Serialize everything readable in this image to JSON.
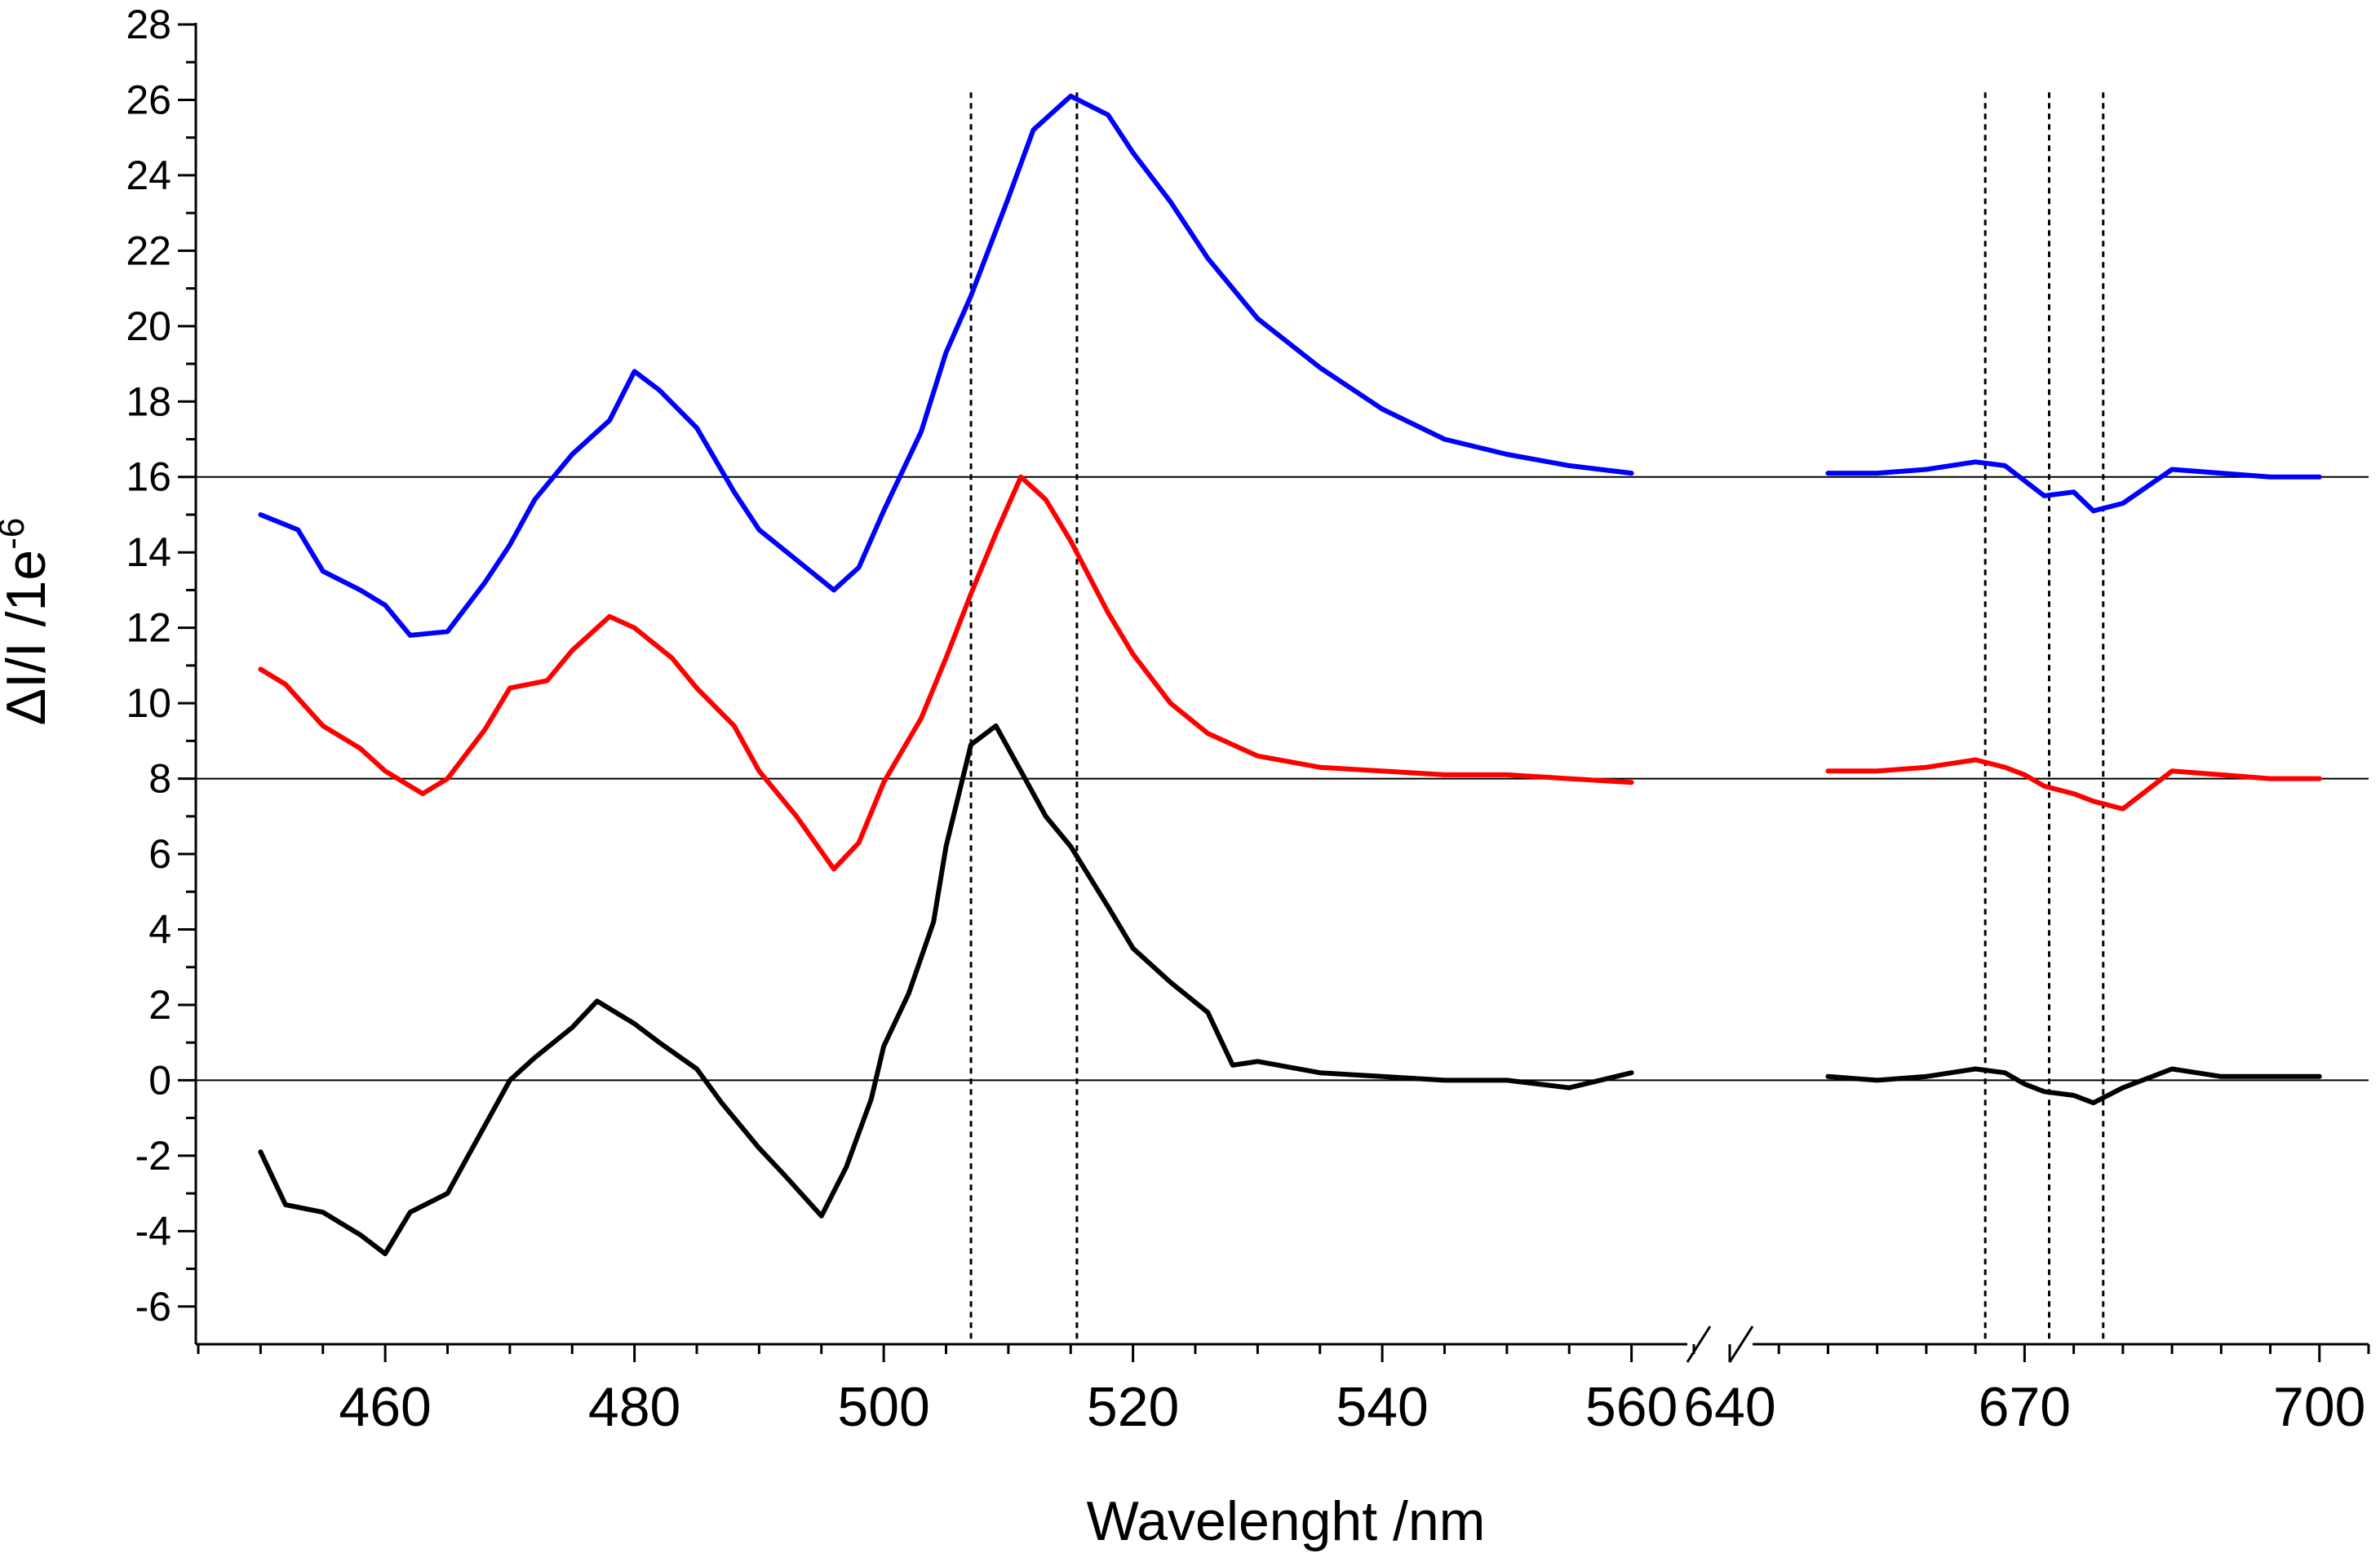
{
  "chart_data": {
    "type": "line",
    "xlabel": "Wavelenght /nm",
    "ylabel": "ΔI/I /1e",
    "ylabel_superscript": "-6",
    "ylim": [
      -7,
      28
    ],
    "broken_x_axis": true,
    "segments": [
      {
        "xlim": [
          445,
          565
        ],
        "ticks": [
          460,
          480,
          500,
          520,
          540,
          560
        ]
      },
      {
        "xlim": [
          640,
          705
        ],
        "ticks": [
          640,
          670,
          700
        ]
      }
    ],
    "y_ticks": [
      -6,
      -4,
      -2,
      0,
      2,
      4,
      6,
      8,
      10,
      12,
      14,
      16,
      18,
      20,
      22,
      24,
      26,
      28
    ],
    "x_tick_labels": [
      "460",
      "480",
      "500",
      "520",
      "540",
      "560",
      "640",
      "670",
      "700"
    ],
    "y_tick_labels": [
      "-6",
      "-4",
      "-2",
      "0",
      "2",
      "4",
      "6",
      "8",
      "10",
      "12",
      "14",
      "16",
      "18",
      "20",
      "22",
      "24",
      "26",
      "28"
    ],
    "baselines": [
      0,
      8,
      16
    ],
    "vertical_dashed_lines": [
      507,
      515.5,
      666,
      672.5,
      678
    ],
    "series": [
      {
        "color": "#0000ff",
        "x": [
          450,
          453,
          455,
          458,
          460,
          462,
          465,
          468,
          470,
          472,
          475,
          478,
          480,
          482,
          485,
          488,
          490,
          493,
          496,
          498,
          500,
          503,
          505,
          507,
          510,
          512,
          515,
          518,
          520,
          523,
          526,
          530,
          535,
          540,
          545,
          550,
          555,
          560,
          650,
          655,
          660,
          665,
          668,
          670,
          672,
          675,
          677,
          680,
          685,
          690,
          695,
          700
        ],
        "y": [
          15.0,
          14.6,
          13.5,
          13.0,
          12.6,
          11.8,
          11.9,
          13.2,
          14.2,
          15.4,
          16.6,
          17.5,
          18.8,
          18.3,
          17.3,
          15.6,
          14.6,
          13.8,
          13.0,
          13.6,
          15.1,
          17.2,
          19.3,
          20.8,
          23.4,
          25.2,
          26.1,
          25.6,
          24.6,
          23.3,
          21.8,
          20.2,
          18.9,
          17.8,
          17.0,
          16.6,
          16.3,
          16.1,
          16.1,
          16.1,
          16.2,
          16.4,
          16.3,
          15.9,
          15.5,
          15.6,
          15.1,
          15.3,
          16.2,
          16.1,
          16.0,
          16.0
        ]
      },
      {
        "color": "#ff0000",
        "x": [
          450,
          452,
          455,
          458,
          460,
          463,
          465,
          468,
          470,
          473,
          475,
          478,
          480,
          483,
          485,
          488,
          490,
          493,
          496,
          498,
          500,
          503,
          505,
          507,
          509,
          511,
          513,
          515,
          518,
          520,
          523,
          526,
          530,
          535,
          540,
          545,
          550,
          555,
          560,
          650,
          655,
          660,
          665,
          668,
          670,
          672,
          675,
          677,
          680,
          685,
          690,
          695,
          700
        ],
        "y": [
          10.9,
          10.5,
          9.4,
          8.8,
          8.2,
          7.6,
          8.0,
          9.3,
          10.4,
          10.6,
          11.4,
          12.3,
          12.0,
          11.2,
          10.4,
          9.4,
          8.2,
          7.0,
          5.6,
          6.3,
          7.9,
          9.6,
          11.2,
          12.9,
          14.5,
          16.0,
          15.4,
          14.3,
          12.4,
          11.3,
          10.0,
          9.2,
          8.6,
          8.3,
          8.2,
          8.1,
          8.1,
          8.0,
          7.9,
          8.2,
          8.2,
          8.3,
          8.5,
          8.3,
          8.1,
          7.8,
          7.6,
          7.4,
          7.2,
          8.2,
          8.1,
          8.0,
          8.0
        ]
      },
      {
        "color": "#000000",
        "x": [
          450,
          452,
          455,
          458,
          460,
          462,
          465,
          467,
          470,
          472,
          475,
          477,
          480,
          482,
          485,
          487,
          490,
          492,
          495,
          497,
          499,
          500,
          502,
          504,
          505,
          507,
          509,
          511,
          513,
          515,
          518,
          520,
          523,
          526,
          528,
          530,
          535,
          540,
          545,
          550,
          555,
          560,
          650,
          655,
          660,
          665,
          668,
          670,
          672,
          675,
          677,
          680,
          685,
          690,
          695,
          700
        ],
        "y": [
          -1.9,
          -3.3,
          -3.5,
          -4.1,
          -4.6,
          -3.5,
          -3.0,
          -1.8,
          0.0,
          0.6,
          1.4,
          2.1,
          1.5,
          1.0,
          0.3,
          -0.6,
          -1.8,
          -2.5,
          -3.6,
          -2.3,
          -0.5,
          0.9,
          2.3,
          4.2,
          6.2,
          8.9,
          9.4,
          8.2,
          7.0,
          6.2,
          4.6,
          3.5,
          2.6,
          1.8,
          0.4,
          0.5,
          0.2,
          0.1,
          0.0,
          0.0,
          -0.2,
          0.2,
          0.1,
          0.0,
          0.1,
          0.3,
          0.2,
          -0.1,
          -0.3,
          -0.4,
          -0.6,
          -0.2,
          0.3,
          0.1,
          0.1,
          0.1
        ]
      }
    ]
  }
}
